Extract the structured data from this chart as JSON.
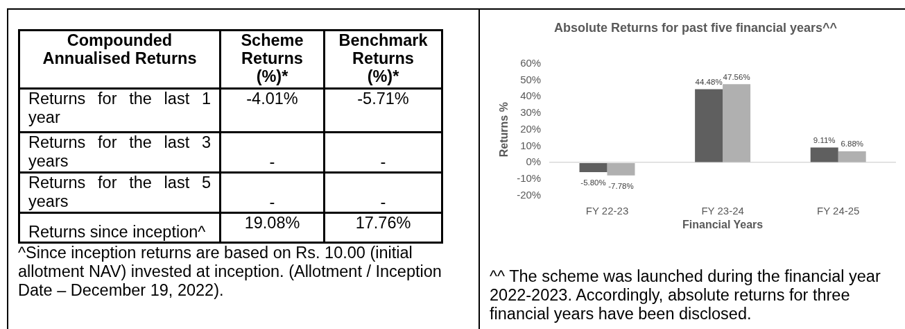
{
  "chart_data": [
    {
      "type": "other",
      "title": "Compounded Annualised Returns",
      "categories": [
        "Returns for the last 1 year",
        "Returns for the last 3 years",
        "Returns for the last 5 years",
        "Returns since inception^"
      ],
      "series": [
        {
          "name": "Scheme Returns (%)*",
          "color": "#000000",
          "values": [
            -4.01,
            null,
            null,
            19.08
          ],
          "value_labels": [
            "-4.01%",
            "-",
            "-",
            "19.08%"
          ]
        },
        {
          "name": "Benchmark Returns (%)*",
          "color": "#000000",
          "values": [
            -5.71,
            null,
            null,
            17.76
          ],
          "value_labels": [
            "-5.71%",
            "-",
            "-",
            "17.76%"
          ]
        }
      ],
      "annotations": [
        "^Since inception returns are based on Rs. 10.00 (initial allotment NAV) invested at inception. (Allotment / Inception Date – December 19, 2022)."
      ]
    },
    {
      "type": "bar",
      "title": "Absolute Returns for past five financial years^^",
      "xlabel": "Financial Years",
      "ylabel": "Returns %",
      "categories": [
        "FY 22-23",
        "FY 23-24",
        "FY 24-25"
      ],
      "series": [
        {
          "color": "#5f5f5f",
          "values": [
            -5.8,
            44.48,
            9.11
          ],
          "value_labels": [
            "-5.80%",
            "44.48%",
            "9.11%"
          ]
        },
        {
          "color": "#b0b0b0",
          "values": [
            -7.78,
            47.56,
            6.88
          ],
          "value_labels": [
            "-7.78%",
            "47.56%",
            "6.88%"
          ]
        }
      ],
      "ylim": [
        -20,
        60
      ],
      "yticks": [
        {
          "value": -20,
          "label": "-20%"
        },
        {
          "value": -10,
          "label": "-10%"
        },
        {
          "value": 0,
          "label": "0%"
        },
        {
          "value": 10,
          "label": "10%"
        },
        {
          "value": 20,
          "label": "20%"
        },
        {
          "value": 30,
          "label": "30%"
        },
        {
          "value": 40,
          "label": "40%"
        },
        {
          "value": 50,
          "label": "50%"
        },
        {
          "value": 60,
          "label": "60%"
        }
      ],
      "annotations": [
        "^^ The scheme was launched during the financial year 2022-2023. Accordingly, absolute returns for three financial years have been disclosed."
      ]
    }
  ]
}
